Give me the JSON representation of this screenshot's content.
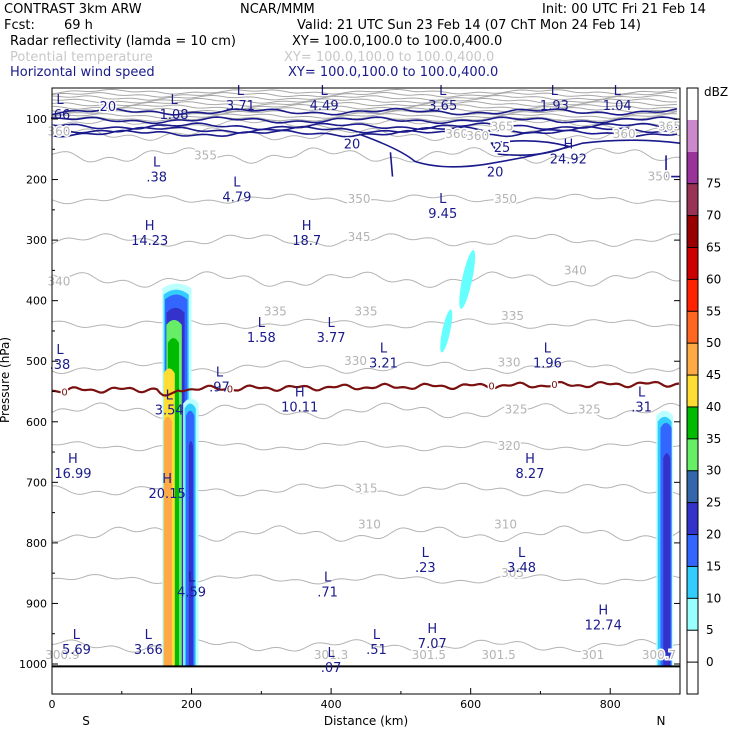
{
  "header": {
    "model": "CONTRAST  3km ARW",
    "org": "NCAR/MMM",
    "init": "Init: 00 UTC Fri 21 Feb 14",
    "fcst_label": "Fcst:",
    "fcst_value": "69 h",
    "valid": "Valid: 21 UTC Sun 23 Feb 14 (07 ChT Mon 24 Feb 14)",
    "fields": [
      {
        "name": "Radar reflectivity (lamda = 10 cm)",
        "xy": "XY= 100.0,100.0 to 100.0,400.0",
        "color": "#000000"
      },
      {
        "name": "Potential temperature",
        "xy": "XY= 100.0,100.0 to 100.0,400.0",
        "color": "#c8c8c8"
      },
      {
        "name": "Horizontal wind speed",
        "xy": "XY= 100.0,100.0 to 100.0,400.0",
        "color": "#1a1a8c"
      }
    ]
  },
  "chart_data": {
    "type": "cross-section",
    "xlabel": "Distance (km)",
    "ylabel": "Pressure (hPa)",
    "xlim": [
      0,
      900
    ],
    "ylim": [
      1000,
      50
    ],
    "x_ticks": [
      "0",
      "200",
      "400",
      "600",
      "800"
    ],
    "x_tick_values": [
      0,
      200,
      400,
      600,
      800
    ],
    "y_ticks": [
      "100",
      "200",
      "300",
      "400",
      "500",
      "600",
      "700",
      "800",
      "900",
      "1000"
    ],
    "y_tick_values": [
      100,
      200,
      300,
      400,
      500,
      600,
      700,
      800,
      900,
      1000
    ],
    "end_labels": {
      "left": "S",
      "right": "N"
    },
    "colorbar": {
      "unit": "dBZ",
      "levels": [
        "0",
        "5",
        "10",
        "15",
        "20",
        "25",
        "30",
        "35",
        "40",
        "45",
        "50",
        "55",
        "60",
        "65",
        "70",
        "75"
      ],
      "colors": [
        "#ffffff",
        "#ffffff",
        "#99ffff",
        "#33ccff",
        "#3366ff",
        "#3333cc",
        "#3366aa",
        "#66ee66",
        "#00bb00",
        "#ffdd33",
        "#ffaa44",
        "#ff6622",
        "#ff2200",
        "#cc0000",
        "#990000",
        "#993355",
        "#993399",
        "#cc88cc",
        "#ffffff"
      ]
    },
    "theta_contours": [
      {
        "label": "365",
        "pressure": 108
      },
      {
        "label": "360",
        "pressure": 125
      },
      {
        "label": "355",
        "pressure": 160
      },
      {
        "label": "350",
        "pressure": 232
      },
      {
        "label": "345",
        "pressure": 300
      },
      {
        "label": "340",
        "pressure": 365
      },
      {
        "label": "335",
        "pressure": 438
      },
      {
        "label": "330",
        "pressure": 510
      },
      {
        "label": "325",
        "pressure": 582
      },
      {
        "label": "320",
        "pressure": 640
      },
      {
        "label": "315",
        "pressure": 712
      },
      {
        "label": "310",
        "pressure": 785
      },
      {
        "label": "305",
        "pressure": 860
      },
      {
        "label": "301.5",
        "pressure": 970
      }
    ],
    "theta_labels": [
      {
        "text": "355",
        "x": 220,
        "p": 160
      },
      {
        "text": "350",
        "x": 440,
        "p": 232
      },
      {
        "text": "350",
        "x": 650,
        "p": 232
      },
      {
        "text": "350",
        "x": 870,
        "p": 195
      },
      {
        "text": "345",
        "x": 440,
        "p": 295
      },
      {
        "text": "340",
        "x": 10,
        "p": 368
      },
      {
        "text": "340",
        "x": 750,
        "p": 350
      },
      {
        "text": "335",
        "x": 320,
        "p": 418
      },
      {
        "text": "335",
        "x": 450,
        "p": 418
      },
      {
        "text": "335",
        "x": 660,
        "p": 425
      },
      {
        "text": "330",
        "x": 435,
        "p": 500
      },
      {
        "text": "330",
        "x": 655,
        "p": 502
      },
      {
        "text": "325",
        "x": 665,
        "p": 580
      },
      {
        "text": "325",
        "x": 770,
        "p": 580
      },
      {
        "text": "320",
        "x": 655,
        "p": 640
      },
      {
        "text": "315",
        "x": 450,
        "p": 710
      },
      {
        "text": "310",
        "x": 455,
        "p": 770
      },
      {
        "text": "310",
        "x": 650,
        "p": 770
      },
      {
        "text": "305",
        "x": 660,
        "p": 850
      },
      {
        "text": "301.3",
        "x": 400,
        "p": 985
      },
      {
        "text": "301.5",
        "x": 540,
        "p": 985
      },
      {
        "text": "301.5",
        "x": 640,
        "p": 985
      },
      {
        "text": "301",
        "x": 775,
        "p": 985
      },
      {
        "text": "300.7",
        "x": 870,
        "p": 985
      },
      {
        "text": "300.9",
        "x": 15,
        "p": 985
      },
      {
        "text": "365",
        "x": 645,
        "p": 112
      },
      {
        "text": "365",
        "x": 885,
        "p": 112
      },
      {
        "text": "360",
        "x": 580,
        "p": 125
      },
      {
        "text": "360",
        "x": 820,
        "p": 125
      },
      {
        "text": "360",
        "x": 610,
        "p": 128
      },
      {
        "text": "360",
        "x": 10,
        "p": 121
      }
    ],
    "wind_labels": [
      {
        "text": "20",
        "x": 80,
        "p": 80
      },
      {
        "text": "20",
        "x": 430,
        "p": 142
      },
      {
        "text": "25",
        "x": 645,
        "p": 148
      },
      {
        "text": "20",
        "x": 635,
        "p": 188
      }
    ],
    "zero_line_labels": [
      {
        "text": "0",
        "x": 18,
        "p": 550
      },
      {
        "text": "0",
        "x": 255,
        "p": 545
      },
      {
        "text": "0",
        "x": 630,
        "p": 540
      },
      {
        "text": "0",
        "x": 720,
        "p": 538
      }
    ],
    "extrema": [
      {
        "type": "L",
        "value": ".66",
        "x": 8,
        "p": 82
      },
      {
        "type": "L",
        "value": "1.08",
        "x": 175,
        "p": 82
      },
      {
        "type": "L",
        "value": "3.71",
        "x": 270,
        "p": 67
      },
      {
        "type": "L",
        "value": "4.49",
        "x": 390,
        "p": 67
      },
      {
        "type": "L",
        "value": "3.65",
        "x": 560,
        "p": 67
      },
      {
        "type": "L",
        "value": "1.93",
        "x": 720,
        "p": 67
      },
      {
        "type": "L",
        "value": "1.04",
        "x": 810,
        "p": 67
      },
      {
        "type": "L",
        "value": ".38",
        "x": 150,
        "p": 185
      },
      {
        "type": "L",
        "value": "4.79",
        "x": 265,
        "p": 218
      },
      {
        "type": "L",
        "value": "9.45",
        "x": 560,
        "p": 245
      },
      {
        "type": "H",
        "value": "24.92",
        "x": 740,
        "p": 155
      },
      {
        "type": "H",
        "value": "14.23",
        "x": 140,
        "p": 290
      },
      {
        "type": "H",
        "value": "18.7",
        "x": 365,
        "p": 290
      },
      {
        "type": "L",
        "value": "1.58",
        "x": 300,
        "p": 450
      },
      {
        "type": "L",
        "value": "3.77",
        "x": 400,
        "p": 450
      },
      {
        "type": "L",
        "value": "3.21",
        "x": 475,
        "p": 492
      },
      {
        "type": "L",
        "value": "1.96",
        "x": 710,
        "p": 492
      },
      {
        "type": "L",
        "value": ".38",
        "x": 10,
        "p": 495
      },
      {
        "type": "L",
        "value": ".97",
        "x": 240,
        "p": 532
      },
      {
        "type": "H",
        "value": "10.11",
        "x": 355,
        "p": 565
      },
      {
        "type": "L",
        "value": ".31",
        "x": 845,
        "p": 565
      },
      {
        "type": "L",
        "value": "3.54",
        "x": 168,
        "p": 570
      },
      {
        "type": "H",
        "value": "16.99",
        "x": 30,
        "p": 675
      },
      {
        "type": "H",
        "value": "8.27",
        "x": 685,
        "p": 675
      },
      {
        "type": "H",
        "value": "20.15",
        "x": 165,
        "p": 708
      },
      {
        "type": "L",
        "value": ".23",
        "x": 535,
        "p": 830
      },
      {
        "type": "L",
        "value": "3.48",
        "x": 673,
        "p": 830
      },
      {
        "type": "L",
        "value": "4.59",
        "x": 200,
        "p": 870
      },
      {
        "type": "L",
        "value": ".71",
        "x": 395,
        "p": 870
      },
      {
        "type": "H",
        "value": "12.74",
        "x": 790,
        "p": 925
      },
      {
        "type": "L",
        "value": "5.69",
        "x": 35,
        "p": 965
      },
      {
        "type": "L",
        "value": "3.66",
        "x": 138,
        "p": 965
      },
      {
        "type": "L",
        "value": ".51",
        "x": 465,
        "p": 965
      },
      {
        "type": "H",
        "value": "7.07",
        "x": 545,
        "p": 955
      },
      {
        "type": "L",
        "value": ".07",
        "x": 400,
        "p": 995
      }
    ]
  }
}
